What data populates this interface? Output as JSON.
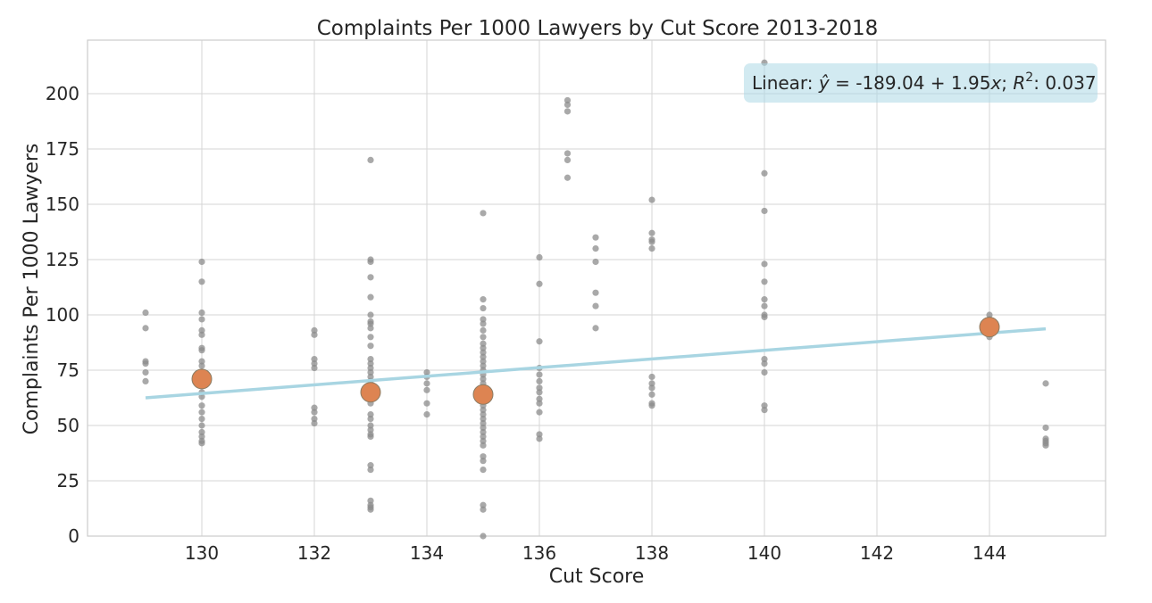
{
  "chart_data": {
    "type": "scatter",
    "title": "Complaints Per 1000 Lawyers by Cut Score 2013-2018",
    "xlabel": "Cut Score",
    "ylabel": "Complaints Per 1000 Lawyers",
    "xlim": [
      128.1,
      146.4
    ],
    "ylim": [
      0,
      224
    ],
    "xticks": [
      130,
      132,
      134,
      136,
      138,
      140,
      142,
      144
    ],
    "yticks": [
      0,
      25,
      50,
      75,
      100,
      125,
      150,
      175,
      200
    ],
    "grid": true,
    "colors": {
      "points": "#8c8c8c",
      "means": "#dd8452",
      "fit": "#a8d5e2",
      "annotation": "#add8e6"
    },
    "annotation": {
      "prefix": "Linear: ",
      "yhat": "ŷ",
      "equation": " = -189.04 + 1.95",
      "x": "x",
      "sep": "; ",
      "R": "R",
      "sup": "2",
      "value": ": 0.037"
    },
    "fit": {
      "intercept": -189.04,
      "slope": 1.95,
      "x_range": [
        129,
        145
      ]
    },
    "series": [
      {
        "type": "scatter",
        "points": [
          [
            129,
            101
          ],
          [
            129,
            94
          ],
          [
            129,
            79
          ],
          [
            129,
            78
          ],
          [
            129,
            74
          ],
          [
            129,
            70
          ],
          [
            130,
            124
          ],
          [
            130,
            115
          ],
          [
            130,
            101
          ],
          [
            130,
            98
          ],
          [
            130,
            93
          ],
          [
            130,
            91
          ],
          [
            130,
            85
          ],
          [
            130,
            84
          ],
          [
            130,
            79
          ],
          [
            130,
            77
          ],
          [
            130,
            73
          ],
          [
            130,
            68
          ],
          [
            130,
            65
          ],
          [
            130,
            63
          ],
          [
            130,
            59
          ],
          [
            130,
            56
          ],
          [
            130,
            53
          ],
          [
            130,
            50
          ],
          [
            130,
            47
          ],
          [
            130,
            45
          ],
          [
            130,
            43
          ],
          [
            130,
            42
          ],
          [
            132,
            93
          ],
          [
            132,
            91
          ],
          [
            132,
            80
          ],
          [
            132,
            78
          ],
          [
            132,
            76
          ],
          [
            132,
            58
          ],
          [
            132,
            56
          ],
          [
            132,
            53
          ],
          [
            132,
            51
          ],
          [
            133,
            170
          ],
          [
            133,
            125
          ],
          [
            133,
            124
          ],
          [
            133,
            117
          ],
          [
            133,
            108
          ],
          [
            133,
            100
          ],
          [
            133,
            97
          ],
          [
            133,
            96
          ],
          [
            133,
            94
          ],
          [
            133,
            90
          ],
          [
            133,
            86
          ],
          [
            133,
            80
          ],
          [
            133,
            78
          ],
          [
            133,
            76
          ],
          [
            133,
            74
          ],
          [
            133,
            72
          ],
          [
            133,
            70
          ],
          [
            133,
            68
          ],
          [
            133,
            63
          ],
          [
            133,
            60
          ],
          [
            133,
            55
          ],
          [
            133,
            53
          ],
          [
            133,
            50
          ],
          [
            133,
            48
          ],
          [
            133,
            46
          ],
          [
            133,
            45
          ],
          [
            133,
            32
          ],
          [
            133,
            30
          ],
          [
            133,
            16
          ],
          [
            133,
            14
          ],
          [
            133,
            13
          ],
          [
            133,
            12
          ],
          [
            134,
            74
          ],
          [
            134,
            72
          ],
          [
            134,
            69
          ],
          [
            134,
            66
          ],
          [
            134,
            60
          ],
          [
            134,
            55
          ],
          [
            135,
            146
          ],
          [
            135,
            107
          ],
          [
            135,
            103
          ],
          [
            135,
            98
          ],
          [
            135,
            96
          ],
          [
            135,
            93
          ],
          [
            135,
            90
          ],
          [
            135,
            87
          ],
          [
            135,
            85
          ],
          [
            135,
            83
          ],
          [
            135,
            81
          ],
          [
            135,
            79
          ],
          [
            135,
            77
          ],
          [
            135,
            75
          ],
          [
            135,
            73
          ],
          [
            135,
            71
          ],
          [
            135,
            69
          ],
          [
            135,
            67
          ],
          [
            135,
            65
          ],
          [
            135,
            63
          ],
          [
            135,
            61
          ],
          [
            135,
            59
          ],
          [
            135,
            57
          ],
          [
            135,
            55
          ],
          [
            135,
            53
          ],
          [
            135,
            51
          ],
          [
            135,
            49
          ],
          [
            135,
            47
          ],
          [
            135,
            45
          ],
          [
            135,
            43
          ],
          [
            135,
            41
          ],
          [
            135,
            36
          ],
          [
            135,
            34
          ],
          [
            135,
            30
          ],
          [
            135,
            14
          ],
          [
            135,
            12
          ],
          [
            135,
            0
          ],
          [
            136,
            126
          ],
          [
            136,
            114
          ],
          [
            136,
            88
          ],
          [
            136,
            76
          ],
          [
            136,
            73
          ],
          [
            136,
            70
          ],
          [
            136,
            67
          ],
          [
            136,
            65
          ],
          [
            136,
            62
          ],
          [
            136,
            60
          ],
          [
            136,
            56
          ],
          [
            136,
            46
          ],
          [
            136,
            44
          ],
          [
            136.5,
            197
          ],
          [
            136.5,
            195
          ],
          [
            136.5,
            192
          ],
          [
            136.5,
            173
          ],
          [
            136.5,
            170
          ],
          [
            136.5,
            162
          ],
          [
            137,
            135
          ],
          [
            137,
            130
          ],
          [
            137,
            124
          ],
          [
            137,
            110
          ],
          [
            137,
            104
          ],
          [
            137,
            94
          ],
          [
            138,
            152
          ],
          [
            138,
            137
          ],
          [
            138,
            134
          ],
          [
            138,
            133
          ],
          [
            138,
            130
          ],
          [
            138,
            72
          ],
          [
            138,
            69
          ],
          [
            138,
            67
          ],
          [
            138,
            64
          ],
          [
            138,
            60
          ],
          [
            138,
            59
          ],
          [
            140,
            214
          ],
          [
            140,
            164
          ],
          [
            140,
            147
          ],
          [
            140,
            123
          ],
          [
            140,
            115
          ],
          [
            140,
            107
          ],
          [
            140,
            104
          ],
          [
            140,
            100
          ],
          [
            140,
            99
          ],
          [
            140,
            80
          ],
          [
            140,
            78
          ],
          [
            140,
            74
          ],
          [
            140,
            59
          ],
          [
            140,
            57
          ],
          [
            144,
            100
          ],
          [
            144,
            98
          ],
          [
            144,
            96
          ],
          [
            144,
            93
          ],
          [
            144,
            90
          ],
          [
            145,
            69
          ],
          [
            145,
            49
          ],
          [
            145,
            44
          ],
          [
            145,
            43
          ],
          [
            145,
            42
          ],
          [
            145,
            41
          ]
        ]
      },
      {
        "type": "mean",
        "points": [
          [
            130,
            71
          ],
          [
            133,
            65
          ],
          [
            135,
            64
          ],
          [
            144,
            94.5
          ]
        ]
      }
    ]
  }
}
